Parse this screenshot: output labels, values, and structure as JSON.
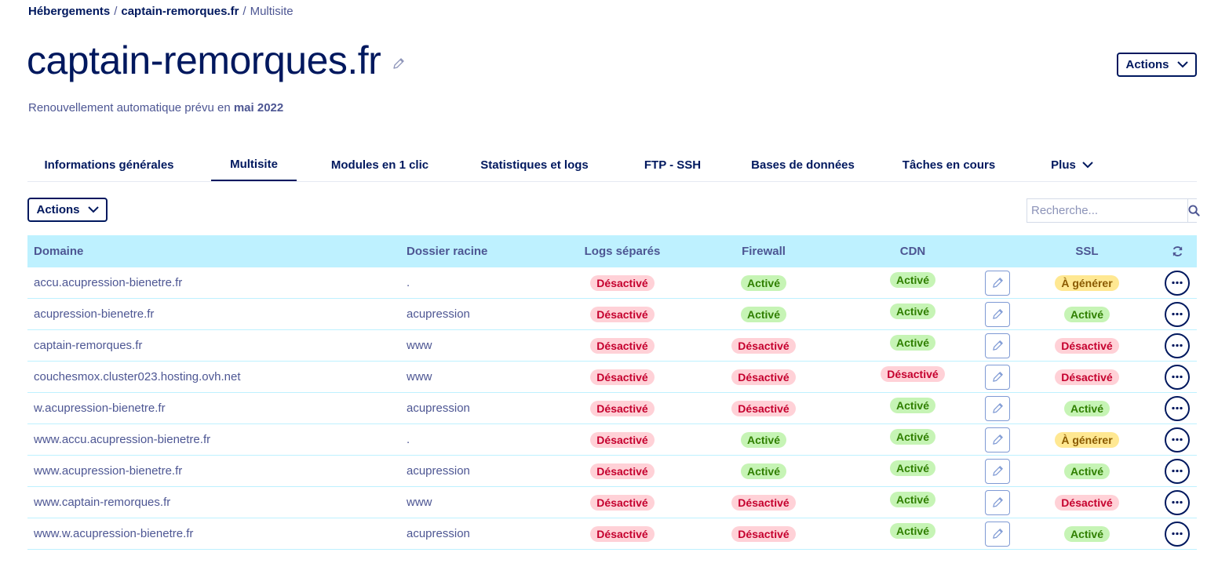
{
  "breadcrumb": {
    "items": [
      "Hébergements",
      "captain-remorques.fr"
    ],
    "separator": "/",
    "current": "Multisite"
  },
  "header": {
    "title": "captain-remorques.fr",
    "renewal_prefix": "Renouvellement automatique prévu en",
    "renewal_date": "mai 2022",
    "actions_label": "Actions"
  },
  "tabs": [
    {
      "label": "Informations générales",
      "active": false
    },
    {
      "label": "Multisite",
      "active": true
    },
    {
      "label": "Modules en 1 clic",
      "active": false
    },
    {
      "label": "Statistiques et logs",
      "active": false
    },
    {
      "label": "FTP - SSH",
      "active": false
    },
    {
      "label": "Bases de données",
      "active": false
    },
    {
      "label": "Tâches en cours",
      "active": false
    },
    {
      "label": "Plus",
      "active": false
    }
  ],
  "toolbar": {
    "actions_label": "Actions",
    "search_placeholder": "Recherche..."
  },
  "table": {
    "columns": {
      "domain": "Domaine",
      "root": "Dossier racine",
      "logs": "Logs séparés",
      "firewall": "Firewall",
      "cdn": "CDN",
      "ssl": "SSL"
    },
    "rows": [
      {
        "domain": "accu.acupression-bienetre.fr",
        "root": ".",
        "logs": "Désactivé",
        "firewall": "Activé",
        "cdn": "Activé",
        "ssl": "À générer"
      },
      {
        "domain": "acupression-bienetre.fr",
        "root": "acupression",
        "logs": "Désactivé",
        "firewall": "Activé",
        "cdn": "Activé",
        "ssl": "Activé"
      },
      {
        "domain": "captain-remorques.fr",
        "root": "www",
        "logs": "Désactivé",
        "firewall": "Désactivé",
        "cdn": "Activé",
        "ssl": "Désactivé"
      },
      {
        "domain": "couchesmox.cluster023.hosting.ovh.net",
        "root": "www",
        "logs": "Désactivé",
        "firewall": "Désactivé",
        "cdn": "Désactivé",
        "ssl": "Désactivé"
      },
      {
        "domain": "w.acupression-bienetre.fr",
        "root": "acupression",
        "logs": "Désactivé",
        "firewall": "Désactivé",
        "cdn": "Activé",
        "ssl": "Activé"
      },
      {
        "domain": "www.accu.acupression-bienetre.fr",
        "root": ".",
        "logs": "Désactivé",
        "firewall": "Activé",
        "cdn": "Activé",
        "ssl": "À générer"
      },
      {
        "domain": "www.acupression-bienetre.fr",
        "root": "acupression",
        "logs": "Désactivé",
        "firewall": "Activé",
        "cdn": "Activé",
        "ssl": "Activé"
      },
      {
        "domain": "www.captain-remorques.fr",
        "root": "www",
        "logs": "Désactivé",
        "firewall": "Désactivé",
        "cdn": "Activé",
        "ssl": "Désactivé"
      },
      {
        "domain": "www.w.acupression-bienetre.fr",
        "root": "acupression",
        "logs": "Désactivé",
        "firewall": "Désactivé",
        "cdn": "Activé",
        "ssl": "Activé"
      }
    ]
  },
  "status_colors": {
    "Activé": "success",
    "Désactivé": "error",
    "À générer": "warning"
  },
  "icons": {
    "title_edit": "pencil-icon",
    "chevron": "chevron-down-icon",
    "search": "search-icon",
    "refresh": "refresh-icon",
    "row_edit": "pencil-icon",
    "row_more": "more-icon"
  },
  "colors": {
    "primary": "#00185e",
    "text": "#4d5693",
    "table_header_bg": "#bef1ff"
  }
}
